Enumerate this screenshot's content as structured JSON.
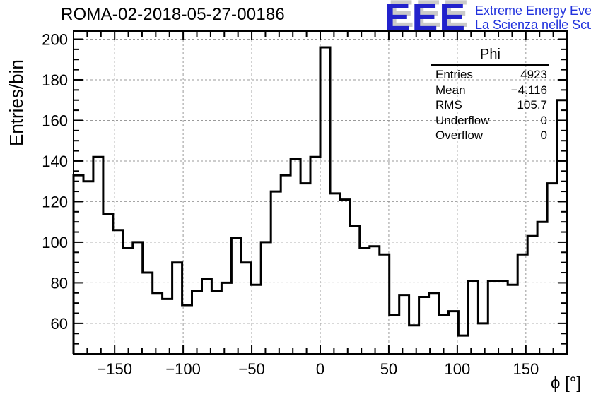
{
  "title": "ROMA-02-2018-05-27-00186",
  "logo": {
    "acronym": "EEE",
    "line1": "Extreme Energy Events",
    "line2": "La Scienza nelle Scuole",
    "acronym_color": "#2222cc",
    "text_color": "#2233dd",
    "shadow_color": "#c9c9c9"
  },
  "stats_box": {
    "title": "Phi",
    "rows": [
      {
        "label": "Entries",
        "value": "4923"
      },
      {
        "label": "Mean",
        "value": "−4.116"
      },
      {
        "label": "RMS",
        "value": "105.7"
      },
      {
        "label": "Underflow",
        "value": "0"
      },
      {
        "label": "Overflow",
        "value": "0"
      }
    ]
  },
  "chart_data": {
    "type": "bar",
    "subtype": "step-histogram",
    "title": "ROMA-02-2018-05-27-00186",
    "xlabel": "ϕ [°]",
    "ylabel": "Entries/bin",
    "x_range": [
      -180,
      180
    ],
    "y_range": [
      45,
      204
    ],
    "bin_start": -180,
    "bin_width": 7.2,
    "n_bins": 50,
    "values": [
      133,
      130,
      142,
      114,
      106,
      97,
      100,
      85,
      75,
      72,
      90,
      69,
      76,
      82,
      76,
      80,
      102,
      90,
      79,
      100,
      125,
      133,
      141,
      129,
      142,
      196,
      124,
      121,
      108,
      97,
      98,
      94,
      64,
      74,
      59,
      73,
      75,
      64,
      66,
      54,
      81,
      60,
      81,
      81,
      79,
      94,
      103,
      110,
      129,
      170
    ],
    "x_major_ticks": [
      -150,
      -100,
      -50,
      0,
      50,
      100,
      150
    ],
    "x_minor_step": 10,
    "y_major_ticks": [
      60,
      80,
      100,
      120,
      140,
      160,
      180,
      200
    ],
    "y_minor_step": 5,
    "grid": true,
    "legend_position": "none",
    "line_color": "#000000",
    "grid_color": "#999999",
    "frame_color": "#000000"
  }
}
